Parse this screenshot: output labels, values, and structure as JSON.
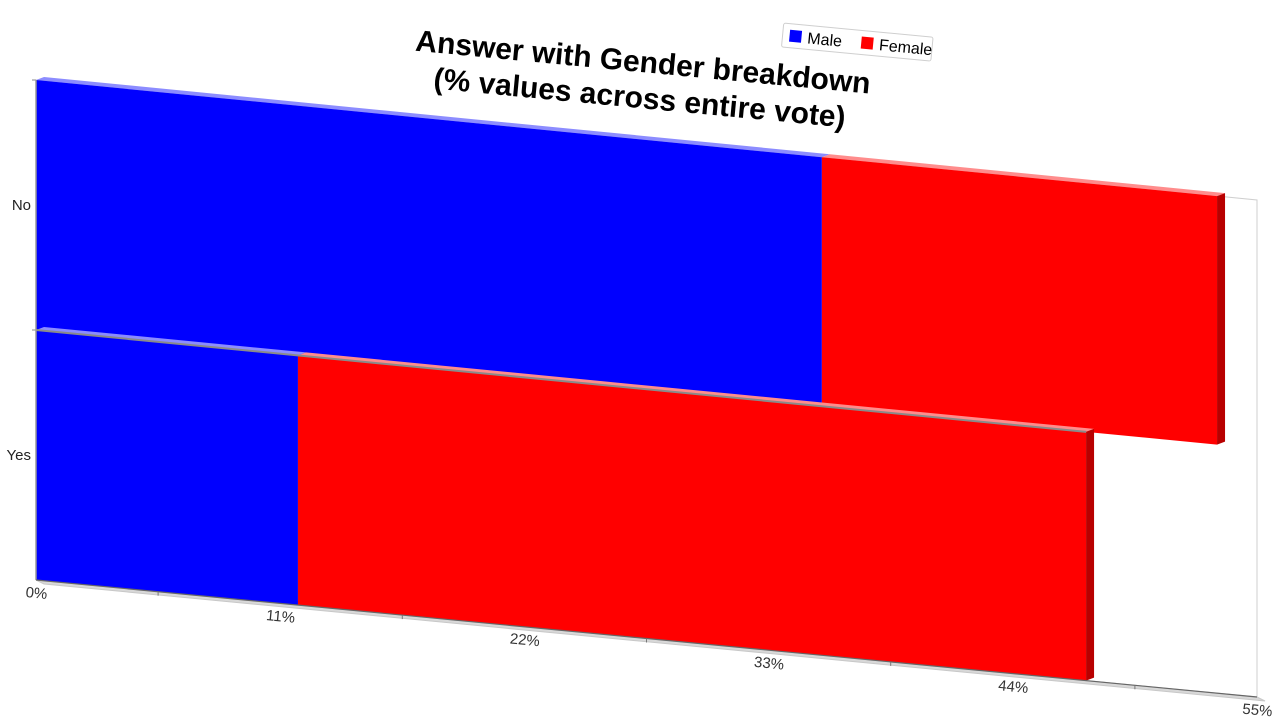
{
  "chart_data": {
    "type": "bar",
    "orientation": "horizontal",
    "stacked": true,
    "three_d": true,
    "title": "Answer with Gender breakdown\n(% values across entire vote)",
    "categories": [
      "No",
      "Yes"
    ],
    "series": [
      {
        "name": "Male",
        "values": [
          35.4,
          11.8
        ]
      },
      {
        "name": "Female",
        "values": [
          17.8,
          35.5
        ]
      }
    ],
    "xlim": [
      0,
      55
    ],
    "xticks": [
      "0%",
      "11%",
      "22%",
      "33%",
      "44%",
      "55%"
    ],
    "legend_position": "top-right",
    "grid": false,
    "colors": {
      "Male": "#0000ff",
      "Female": "#ff0000"
    }
  }
}
